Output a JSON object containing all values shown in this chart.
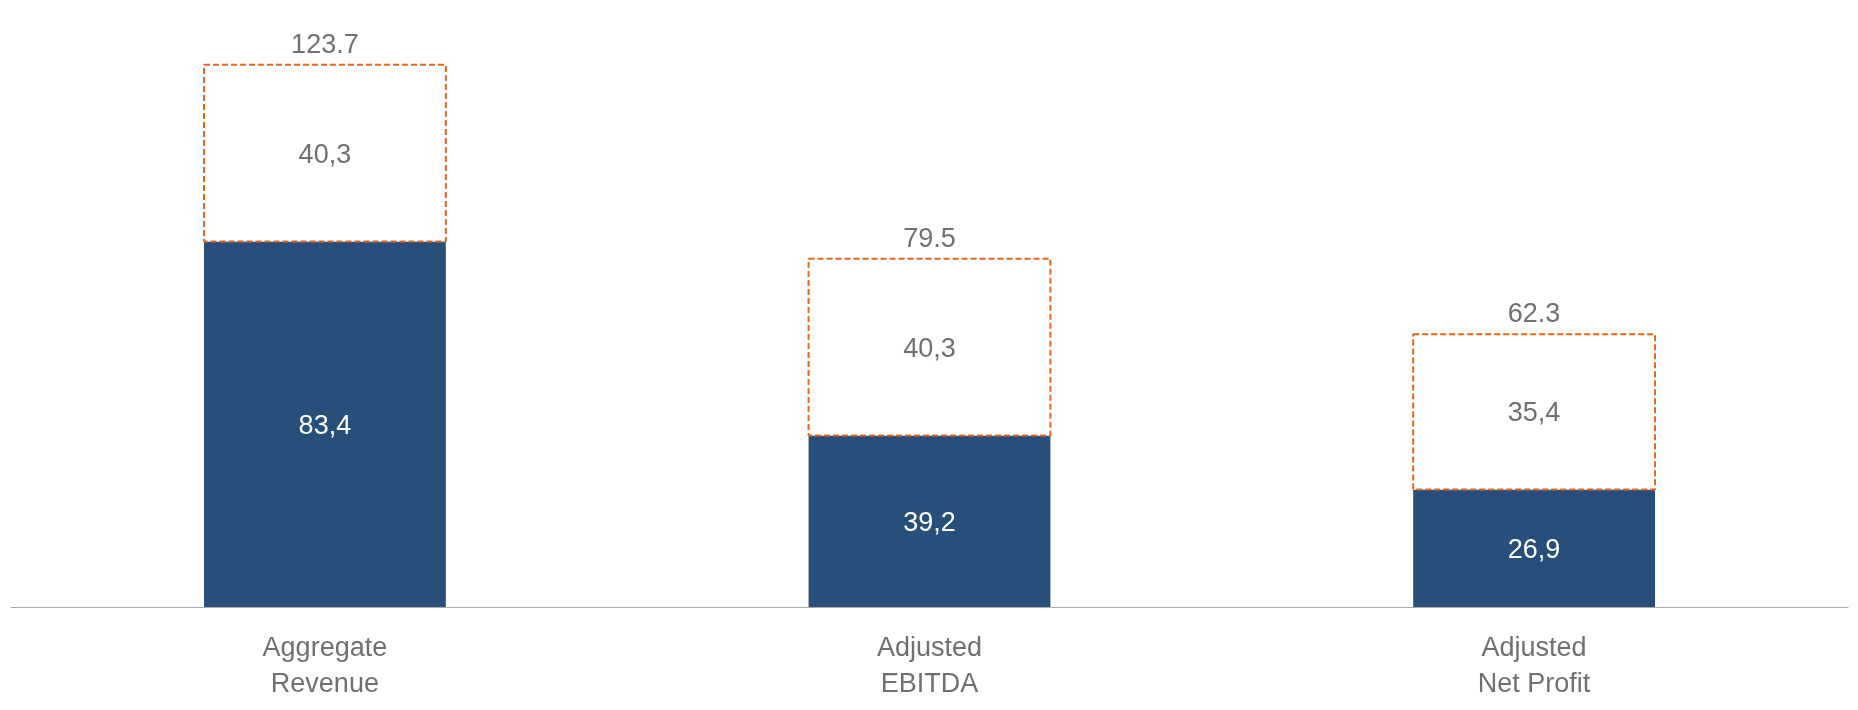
{
  "chart_data": {
    "type": "bar",
    "stacked": true,
    "categories": [
      "Aggregate\nRevenue",
      "Adjusted\nEBITDA",
      "Adjusted\nNet Profit"
    ],
    "series": [
      {
        "color": "#284f7a",
        "values": [
          83.4,
          39.2,
          26.9
        ],
        "value_labels": [
          "83,4",
          "39,2",
          "26,9"
        ]
      },
      {
        "color": "#e8671c",
        "line_style": "dashed",
        "values": [
          40.3,
          40.3,
          35.4
        ],
        "value_labels": [
          "40,3",
          "40,3",
          "35,4"
        ]
      }
    ],
    "totals": [
      "123.7",
      "79.5",
      "62.3"
    ],
    "grid": false
  }
}
